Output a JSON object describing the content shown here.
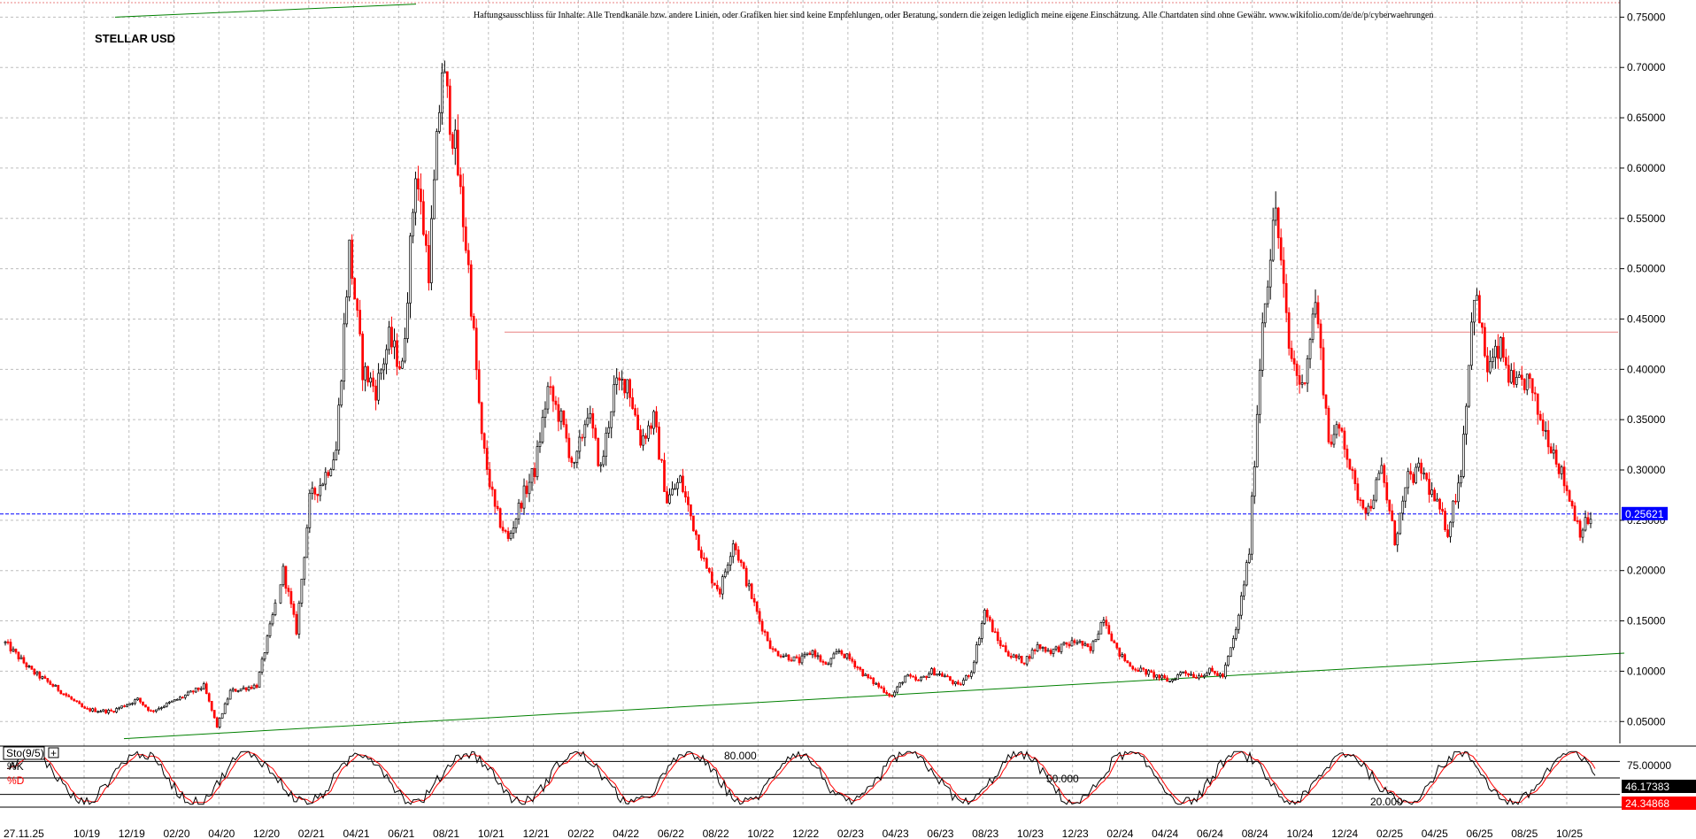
{
  "chart_data": [
    {
      "type": "candlestick",
      "title": "STELLAR USD",
      "disclaimer": "Haftungsausschluss für Inhalte: Alle Trendkanäle bzw. andere Linien, oder Grafiken hier sind keine Empfehlungen, oder Beratung, sondern die zeigen lediglich meine eigene Einschätzung. Alle Chartdaten sind ohne Gewähr. www.wikifolio.com/de/de/p/cyberwaehrungen",
      "ylim": [
        0.03,
        0.76
      ],
      "y_ticks": [
        "0.05000",
        "0.10000",
        "0.15000",
        "0.20000",
        "0.25000",
        "0.30000",
        "0.35000",
        "0.40000",
        "0.45000",
        "0.50000",
        "0.55000",
        "0.60000",
        "0.65000",
        "0.70000",
        "0.75000"
      ],
      "x_ticks": [
        "27.11.25",
        "10/19",
        "12/19",
        "02/20",
        "04/20",
        "12/20",
        "02/21",
        "04/21",
        "06/21",
        "08/21",
        "10/21",
        "12/21",
        "02/22",
        "04/22",
        "06/22",
        "08/22",
        "10/22",
        "12/22",
        "02/23",
        "04/23",
        "06/23",
        "08/23",
        "10/23",
        "12/23",
        "02/24",
        "04/24",
        "06/24",
        "08/24",
        "10/24",
        "12/24",
        "02/25",
        "04/25",
        "06/25",
        "08/25",
        "10/25"
      ],
      "grid": true,
      "current_price": 0.25621,
      "current_price_label": "0.25621",
      "resistance_level": 0.437,
      "up_color": "#000000",
      "down_color": "#ff0000",
      "trendline_color": "#008000",
      "price_line_color": "#0000ff",
      "price_path": [
        [
          0,
          0.128
        ],
        [
          2,
          0.1
        ],
        [
          4,
          0.082
        ],
        [
          6,
          0.062
        ],
        [
          8,
          0.06
        ],
        [
          10,
          0.072
        ],
        [
          11,
          0.06
        ],
        [
          13,
          0.072
        ],
        [
          15,
          0.085
        ],
        [
          16,
          0.045
        ],
        [
          17,
          0.08
        ],
        [
          19,
          0.086
        ],
        [
          21,
          0.2
        ],
        [
          22,
          0.14
        ],
        [
          23,
          0.27
        ],
        [
          24,
          0.29
        ],
        [
          25,
          0.32
        ],
        [
          26,
          0.52
        ],
        [
          27,
          0.4
        ],
        [
          28,
          0.38
        ],
        [
          29,
          0.43
        ],
        [
          30,
          0.4
        ],
        [
          31,
          0.6
        ],
        [
          32,
          0.5
        ],
        [
          33,
          0.7
        ],
        [
          34,
          0.62
        ],
        [
          35,
          0.5
        ],
        [
          36,
          0.33
        ],
        [
          37,
          0.26
        ],
        [
          38,
          0.23
        ],
        [
          39,
          0.27
        ],
        [
          40,
          0.3
        ],
        [
          41,
          0.38
        ],
        [
          42,
          0.35
        ],
        [
          43,
          0.3
        ],
        [
          44,
          0.36
        ],
        [
          45,
          0.3
        ],
        [
          46,
          0.38
        ],
        [
          47,
          0.39
        ],
        [
          48,
          0.33
        ],
        [
          49,
          0.35
        ],
        [
          50,
          0.27
        ],
        [
          51,
          0.29
        ],
        [
          52,
          0.245
        ],
        [
          53,
          0.2
        ],
        [
          54,
          0.18
        ],
        [
          55,
          0.23
        ],
        [
          56,
          0.19
        ],
        [
          57,
          0.15
        ],
        [
          58,
          0.12
        ],
        [
          59,
          0.115
        ],
        [
          60,
          0.11
        ],
        [
          61,
          0.12
        ],
        [
          62,
          0.105
        ],
        [
          63,
          0.12
        ],
        [
          64,
          0.11
        ],
        [
          65,
          0.095
        ],
        [
          66,
          0.085
        ],
        [
          67,
          0.075
        ],
        [
          68,
          0.095
        ],
        [
          69,
          0.09
        ],
        [
          70,
          0.1
        ],
        [
          71,
          0.095
        ],
        [
          72,
          0.085
        ],
        [
          73,
          0.1
        ],
        [
          74,
          0.16
        ],
        [
          75,
          0.13
        ],
        [
          76,
          0.115
        ],
        [
          77,
          0.11
        ],
        [
          78,
          0.125
        ],
        [
          79,
          0.12
        ],
        [
          80,
          0.125
        ],
        [
          81,
          0.13
        ],
        [
          82,
          0.12
        ],
        [
          83,
          0.155
        ],
        [
          84,
          0.12
        ],
        [
          85,
          0.105
        ],
        [
          86,
          0.1
        ],
        [
          87,
          0.095
        ],
        [
          88,
          0.09
        ],
        [
          89,
          0.1
        ],
        [
          90,
          0.095
        ],
        [
          91,
          0.1
        ],
        [
          92,
          0.095
        ],
        [
          93,
          0.14
        ],
        [
          94,
          0.22
        ],
        [
          95,
          0.45
        ],
        [
          96,
          0.56
        ],
        [
          97,
          0.42
        ],
        [
          98,
          0.38
        ],
        [
          99,
          0.47
        ],
        [
          100,
          0.33
        ],
        [
          101,
          0.34
        ],
        [
          102,
          0.28
        ],
        [
          103,
          0.26
        ],
        [
          104,
          0.3
        ],
        [
          105,
          0.23
        ],
        [
          106,
          0.29
        ],
        [
          107,
          0.3
        ],
        [
          108,
          0.27
        ],
        [
          109,
          0.24
        ],
        [
          110,
          0.3
        ],
        [
          111,
          0.48
        ],
        [
          112,
          0.4
        ],
        [
          113,
          0.42
        ],
        [
          114,
          0.38
        ],
        [
          115,
          0.39
        ],
        [
          116,
          0.35
        ],
        [
          117,
          0.32
        ],
        [
          118,
          0.28
        ],
        [
          119,
          0.24
        ],
        [
          120,
          0.256
        ]
      ]
    },
    {
      "type": "line",
      "title": "Sto(9/5)",
      "series": [
        {
          "name": "%K",
          "color": "#000000"
        },
        {
          "name": "%D",
          "color": "#ff0000"
        }
      ],
      "ylim": [
        0,
        100
      ],
      "levels": [
        {
          "label": "80.000",
          "value": 80
        },
        {
          "label": "50.000",
          "value": 50
        },
        {
          "label": "20.000",
          "value": 20
        }
      ],
      "right_ticks": [
        "75.00000"
      ],
      "k_value": 46.17383,
      "k_label": "46.17383",
      "d_value": 24.34868,
      "d_label": "24.34868"
    }
  ]
}
